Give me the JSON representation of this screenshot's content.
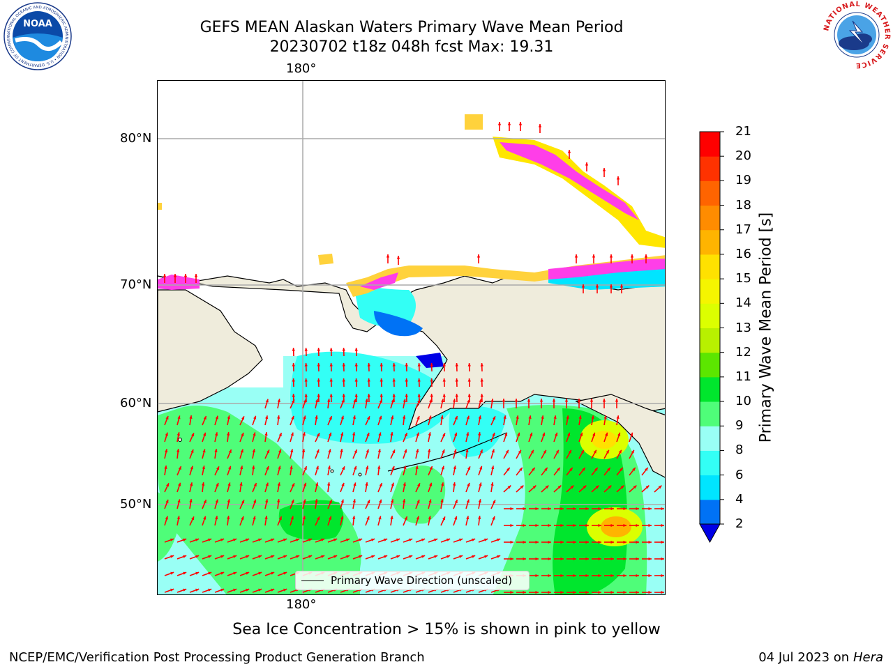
{
  "title": {
    "line1": "GEFS MEAN Alaskan Waters Primary Wave Mean Period",
    "line2": "20230702 t18z 048h fcst   Max: 19.31"
  },
  "map": {
    "lon_label": "180°",
    "lat_labels": [
      "80°N",
      "70°N",
      "60°N",
      "50°N"
    ],
    "legend_label": "Primary Wave Direction (unscaled)"
  },
  "colorbar": {
    "title": "Primary Wave Mean Period [s]",
    "ticks": [
      "2",
      "4",
      "6",
      "8",
      "9",
      "10",
      "11",
      "12",
      "13",
      "14",
      "15",
      "16",
      "17",
      "18",
      "19",
      "20",
      "21"
    ],
    "colors": [
      "#0000e6",
      "#0072f5",
      "#00e5ff",
      "#33fff5",
      "#99fff5",
      "#4ffd79",
      "#00e62d",
      "#5ce600",
      "#b8f000",
      "#dcff00",
      "#f5f500",
      "#ffe100",
      "#ffb400",
      "#ff8c00",
      "#ff6400",
      "#ff3200",
      "#ff0000"
    ]
  },
  "caption": "Sea Ice Concentration > 15% is shown in pink to yellow",
  "footer": {
    "left": "NCEP/EMC/Verification Post Processing Product Generation Branch",
    "date": "04 Jul 2023 on",
    "host": "Hera"
  },
  "logos": {
    "noaa": "NOAA",
    "noaa_ring": "NATIONAL OCEANIC AND ATMOSPHERIC ADMINISTRATION • U.S. DEPARTMENT OF COMMERCE •",
    "nws_ring": "NATIONAL WEATHER SERVICE"
  }
}
